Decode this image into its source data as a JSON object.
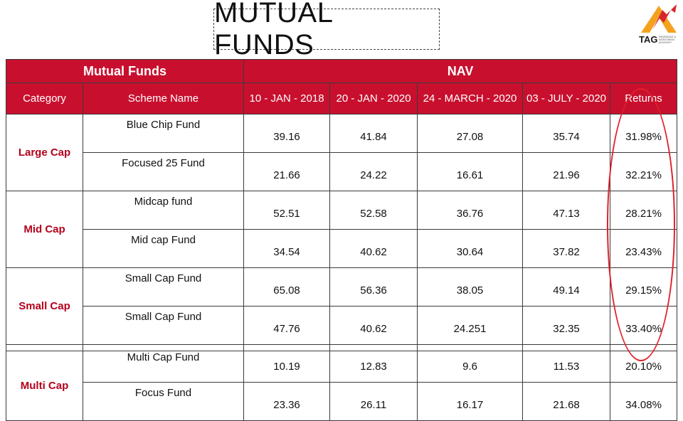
{
  "title": "MUTUAL FUNDS",
  "logo": {
    "name": "TAG",
    "sub": "INSURANCE & INVESTMENT ADVISORY"
  },
  "header": {
    "group_left": "Mutual Funds",
    "group_right": "NAV",
    "columns": [
      "Category",
      "Scheme Name",
      "10 - JAN - 2018",
      "20 - JAN - 2020",
      "24 - MARCH - 2020",
      "03 - JULY - 2020",
      "Returns"
    ]
  },
  "categories": [
    "Large Cap",
    "Mid Cap",
    "Small Cap",
    "Multi Cap"
  ],
  "rows": [
    {
      "scheme": "Blue Chip Fund",
      "v1": "39.16",
      "v2": "41.84",
      "v3": "27.08",
      "v4": "35.74",
      "ret": "31.98%"
    },
    {
      "scheme": "Focused 25 Fund",
      "v1": "21.66",
      "v2": "24.22",
      "v3": "16.61",
      "v4": "21.96",
      "ret": "32.21%"
    },
    {
      "scheme": "Midcap fund",
      "v1": "52.51",
      "v2": "52.58",
      "v3": "36.76",
      "v4": "47.13",
      "ret": "28.21%"
    },
    {
      "scheme": "Mid cap Fund",
      "v1": "34.54",
      "v2": "40.62",
      "v3": "30.64",
      "v4": "37.82",
      "ret": "23.43%"
    },
    {
      "scheme": "Small Cap Fund",
      "v1": "65.08",
      "v2": "56.36",
      "v3": "38.05",
      "v4": "49.14",
      "ret": "29.15%"
    },
    {
      "scheme": "Small Cap Fund",
      "v1": "47.76",
      "v2": "40.62",
      "v3": "24.251",
      "v4": "32.35",
      "ret": "33.40%"
    },
    {
      "scheme": "Multi Cap Fund",
      "v1": "10.19",
      "v2": "12.83",
      "v3": "9.6",
      "v4": "11.53",
      "ret": "20.10%"
    },
    {
      "scheme": "Focus Fund",
      "v1": "23.36",
      "v2": "26.11",
      "v3": "16.17",
      "v4": "21.68",
      "ret": "34.08%"
    }
  ],
  "colors": {
    "header_red": "#c8102e",
    "category_red": "#b3001b",
    "highlight_ring": "#e0202a"
  }
}
